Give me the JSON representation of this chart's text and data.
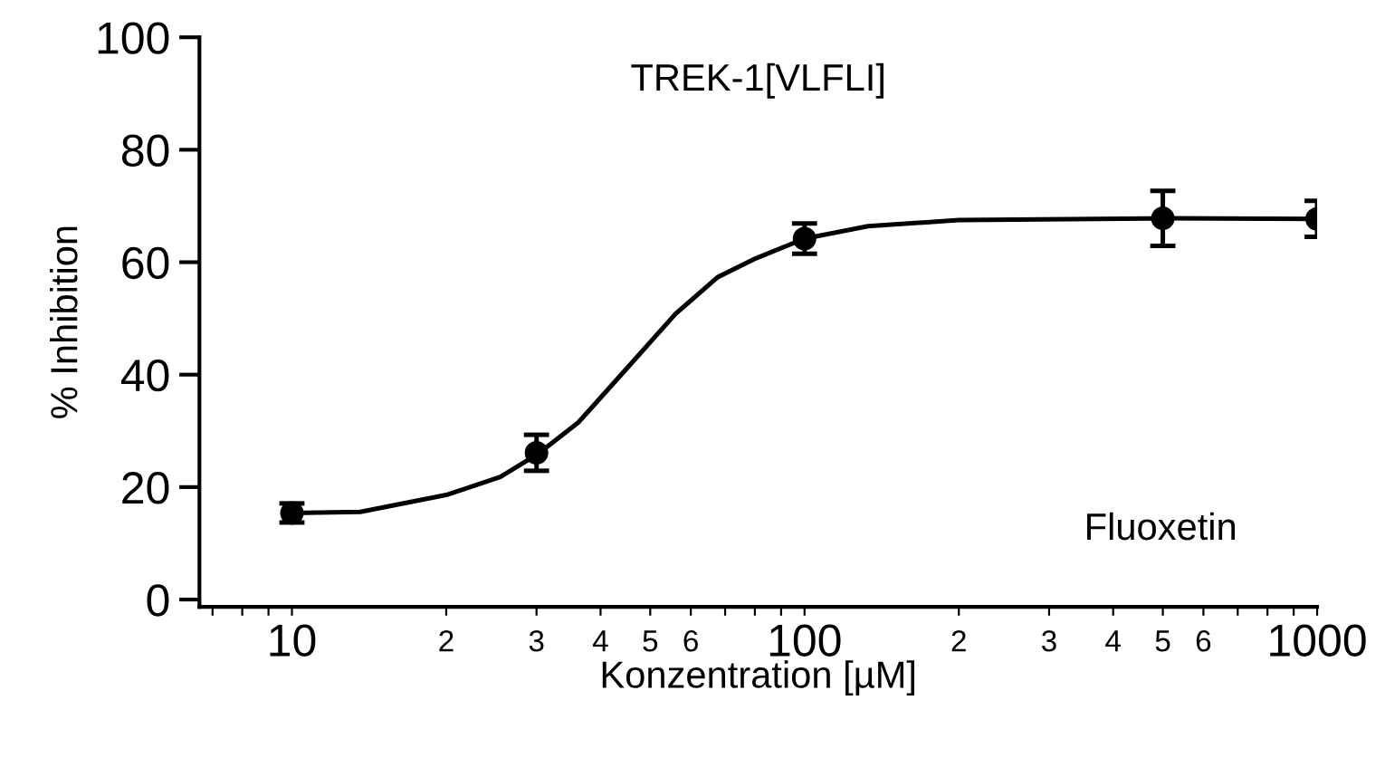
{
  "chart_data": {
    "type": "scatter",
    "title": "TREK-1[VLFLI]",
    "xlabel": "Konzentration [µM]",
    "ylabel": "% Inhibition",
    "annotations": [
      "Fluoxetin",
      "2",
      "3",
      "4",
      "5",
      "6",
      "2",
      "3",
      "4",
      "5",
      "6"
    ],
    "log": "x",
    "grid": false,
    "legend": false,
    "marker": "circle",
    "xlim": [
      6.6,
      1000
    ],
    "ylim": [
      -1.3,
      100
    ],
    "xticks": [
      {
        "value": 7,
        "label": null
      },
      {
        "value": 8,
        "label": null
      },
      {
        "value": 9,
        "label": null
      },
      10,
      {
        "value": 20,
        "label": null
      },
      {
        "value": 30,
        "label": null
      },
      {
        "value": 40,
        "label": null
      },
      {
        "value": 50,
        "label": null
      },
      {
        "value": 60,
        "label": null
      },
      {
        "value": 70,
        "label": null
      },
      {
        "value": 80,
        "label": null
      },
      {
        "value": 90,
        "label": null
      },
      100,
      {
        "value": 200,
        "label": null
      },
      {
        "value": 300,
        "label": null
      },
      {
        "value": 400,
        "label": null
      },
      {
        "value": 500,
        "label": null
      },
      {
        "value": 600,
        "label": null
      },
      {
        "value": 700,
        "label": null
      },
      {
        "value": 800,
        "label": null
      },
      {
        "value": 900,
        "label": null
      },
      1000
    ],
    "yticks": [
      0,
      20,
      40,
      60,
      80,
      100
    ],
    "series": [
      {
        "type": "line",
        "color": "#000000",
        "marker": "none",
        "line_style": "solid",
        "x": [
          10,
          13.6,
          20,
          25.5,
          30.2,
          36.2,
          45.1,
          56,
          67.6,
          79.5,
          100,
          133,
          200,
          500,
          1000
        ],
        "values": [
          15.4,
          15.6,
          18.6,
          21.8,
          25.9,
          31.5,
          41.2,
          50.8,
          57.3,
          60.5,
          64.2,
          66.4,
          67.5,
          67.8,
          67.7
        ]
      },
      {
        "color": "#000000",
        "x": [
          10,
          30,
          100,
          500,
          1000
        ],
        "values": [
          15.4,
          26.1,
          64.2,
          67.8,
          67.7
        ],
        "errors": [
          1.7,
          3.2,
          2.7,
          4.9,
          3.2
        ]
      }
    ]
  }
}
